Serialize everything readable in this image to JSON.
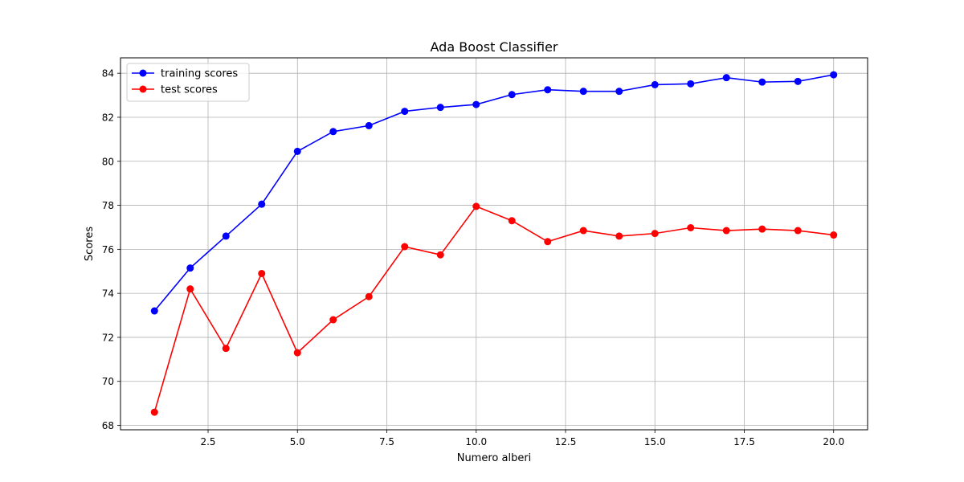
{
  "chart_data": {
    "type": "line",
    "title": "Ada Boost Classifier",
    "xlabel": "Numero alberi",
    "ylabel": "Scores",
    "xlim": [
      0.05,
      20.95
    ],
    "ylim": [
      67.8,
      84.7
    ],
    "xticks": [
      2.5,
      5.0,
      7.5,
      10.0,
      12.5,
      15.0,
      17.5,
      20.0
    ],
    "xtick_labels": [
      "2.5",
      "5.0",
      "7.5",
      "10.0",
      "12.5",
      "15.0",
      "17.5",
      "20.0"
    ],
    "yticks": [
      68,
      70,
      72,
      74,
      76,
      78,
      80,
      82,
      84
    ],
    "ytick_labels": [
      "68",
      "70",
      "72",
      "74",
      "76",
      "78",
      "80",
      "82",
      "84"
    ],
    "grid": true,
    "legend_position": "top-left",
    "x": [
      1,
      2,
      3,
      4,
      5,
      6,
      7,
      8,
      9,
      10,
      11,
      12,
      13,
      14,
      15,
      16,
      17,
      18,
      19,
      20
    ],
    "series": [
      {
        "name": "training scores",
        "color": "#0000ff",
        "values": [
          73.2,
          75.15,
          76.6,
          78.05,
          80.45,
          81.35,
          81.62,
          82.27,
          82.45,
          82.58,
          83.03,
          83.25,
          83.18,
          83.18,
          83.48,
          83.52,
          83.8,
          83.6,
          83.63,
          83.93
        ]
      },
      {
        "name": "test scores",
        "color": "#ff0000",
        "values": [
          68.6,
          74.2,
          71.5,
          74.9,
          71.3,
          72.8,
          73.85,
          76.12,
          75.75,
          77.95,
          77.3,
          76.35,
          76.85,
          76.6,
          76.72,
          76.98,
          76.85,
          76.92,
          76.85,
          76.65
        ]
      }
    ]
  }
}
